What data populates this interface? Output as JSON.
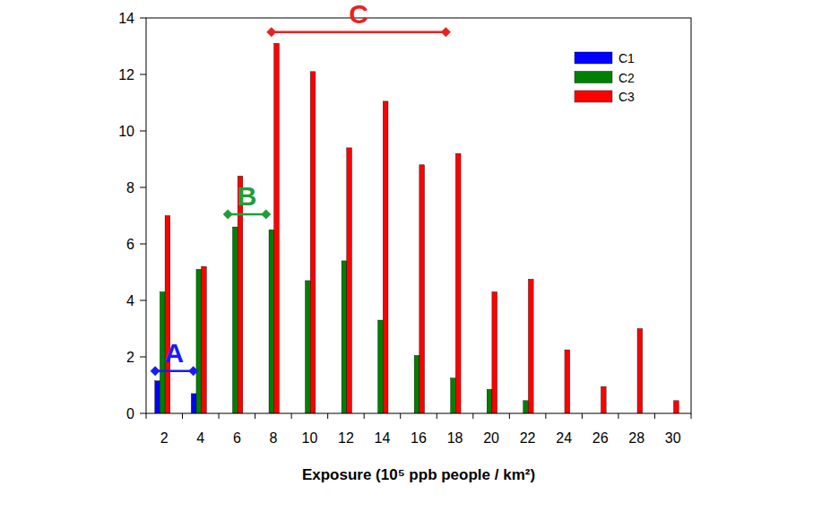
{
  "chart_data": {
    "type": "bar",
    "x_label": "Exposure (10⁵ ppb people / km²)",
    "categories": [
      2,
      4,
      6,
      8,
      10,
      12,
      14,
      16,
      18,
      20,
      22,
      24,
      26,
      28,
      30
    ],
    "series": [
      {
        "name": "C1",
        "color": "#0000ff",
        "values": [
          1.15,
          0.7,
          0,
          0,
          0,
          0,
          0,
          0,
          0,
          0,
          0,
          0,
          0,
          0,
          0
        ]
      },
      {
        "name": "C2",
        "color": "#008000",
        "values": [
          4.3,
          5.1,
          6.6,
          6.5,
          4.7,
          5.4,
          3.3,
          2.05,
          1.25,
          0.85,
          0.45,
          0,
          0,
          0,
          0
        ]
      },
      {
        "name": "C3",
        "color": "#ff0000",
        "values": [
          7.0,
          5.2,
          8.4,
          13.1,
          12.1,
          9.4,
          11.05,
          8.8,
          9.2,
          4.3,
          4.75,
          2.25,
          0.95,
          3.0,
          0.45
        ]
      }
    ],
    "ylim": [
      0,
      14
    ],
    "yticks": [
      0,
      2,
      4,
      6,
      8,
      10,
      12,
      14
    ],
    "grid": false,
    "legend": "upper-right",
    "annotations": [
      {
        "text": "A",
        "color": "#1a1aff",
        "x": [
          1.5,
          3.6
        ],
        "y": 1.5
      },
      {
        "text": "B",
        "color": "#1f9e3a",
        "x": [
          5.5,
          7.6
        ],
        "y": 7.05
      },
      {
        "text": "C",
        "color": "#e8231f",
        "x": [
          7.9,
          17.5
        ],
        "y": 13.5
      }
    ]
  }
}
